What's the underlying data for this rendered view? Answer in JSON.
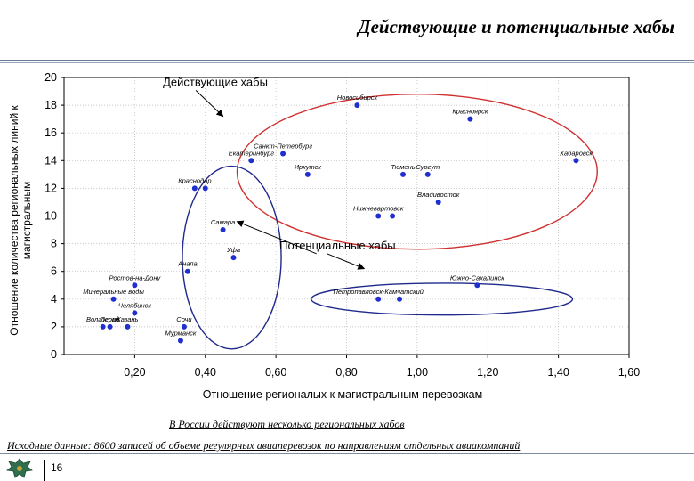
{
  "page": {
    "title": "Действующие и потенциальные хабы",
    "caption": "В России действуют несколько региональных хабов",
    "source": "Исходные данные: 8600 записей об объеме регулярных авиаперевозок по направлениям отдельных авиакомпаний",
    "page_number": "16"
  },
  "chart_data": {
    "type": "scatter",
    "xlabel": "Отношение регионалых к магистральным перевозкам",
    "ylabel": "Отношение количества региональных линий к магистральным",
    "xlim": [
      0.0,
      1.6
    ],
    "ylim": [
      0,
      20
    ],
    "x_ticks": [
      "0,20",
      "0,40",
      "0,60",
      "0,80",
      "1,00",
      "1,20",
      "1,40",
      "1,60"
    ],
    "x_tick_values": [
      0.2,
      0.4,
      0.6,
      0.8,
      1.0,
      1.2,
      1.4,
      1.6
    ],
    "y_ticks": [
      0,
      2,
      4,
      6,
      8,
      10,
      12,
      14,
      16,
      18,
      20
    ],
    "grid": true,
    "point_color": "#1f2fd0",
    "points": [
      {
        "x": 0.83,
        "y": 18.0,
        "label": "Новосибирск"
      },
      {
        "x": 1.15,
        "y": 17.0,
        "label": "Красноярск"
      },
      {
        "x": 0.62,
        "y": 14.5,
        "label": "Санкт-Петербург"
      },
      {
        "x": 0.53,
        "y": 14.0,
        "label": "Екатеринбург"
      },
      {
        "x": 1.45,
        "y": 14.0,
        "label": "Хабаровск"
      },
      {
        "x": 0.69,
        "y": 13.0,
        "label": "Иркутск"
      },
      {
        "x": 0.96,
        "y": 13.0,
        "label": "Тюмень"
      },
      {
        "x": 1.03,
        "y": 13.0,
        "label": "Сургут"
      },
      {
        "x": 0.37,
        "y": 12.0,
        "label": "Краснодар"
      },
      {
        "x": 0.4,
        "y": 12.0,
        "label": ""
      },
      {
        "x": 1.06,
        "y": 11.0,
        "label": "Владивосток"
      },
      {
        "x": 0.89,
        "y": 10.0,
        "label": "Нижневартовск"
      },
      {
        "x": 0.93,
        "y": 10.0,
        "label": ""
      },
      {
        "x": 0.45,
        "y": 9.0,
        "label": "Самара"
      },
      {
        "x": 0.48,
        "y": 7.0,
        "label": "Уфа"
      },
      {
        "x": 0.35,
        "y": 6.0,
        "label": "Анапа"
      },
      {
        "x": 0.2,
        "y": 5.0,
        "label": "Ростов-на-Дону"
      },
      {
        "x": 1.17,
        "y": 5.0,
        "label": "Южно-Сахалинск"
      },
      {
        "x": 0.14,
        "y": 4.0,
        "label": "Минеральные воды"
      },
      {
        "x": 0.89,
        "y": 4.0,
        "label": "Петропавловск-Камчатский"
      },
      {
        "x": 0.95,
        "y": 4.0,
        "label": ""
      },
      {
        "x": 0.2,
        "y": 3.0,
        "label": "Челябинск"
      },
      {
        "x": 0.11,
        "y": 2.0,
        "label": "Волгоград"
      },
      {
        "x": 0.13,
        "y": 2.0,
        "label": "Пермь"
      },
      {
        "x": 0.18,
        "y": 2.0,
        "label": "Казань"
      },
      {
        "x": 0.34,
        "y": 2.0,
        "label": "Сочи"
      },
      {
        "x": 0.33,
        "y": 1.0,
        "label": "Мурманск"
      }
    ],
    "annotations": [
      {
        "text": "Действующие хабы",
        "x": 0.28,
        "y": 19.4,
        "arrow_to": [
          0.45,
          17.2
        ]
      },
      {
        "text": "Потенциальные хабы",
        "x": 0.61,
        "y": 7.6,
        "arrow_to": [
          0.49,
          9.6
        ],
        "arrow_to2": [
          0.85,
          6.2
        ]
      }
    ],
    "ellipses": [
      {
        "name": "Действующие хабы",
        "color": "#d03030",
        "cx": 1.0,
        "cy": 13.2,
        "rx": 0.51,
        "ry": 5.6
      },
      {
        "name": "Потенциальные хабы",
        "color": "#1f2a8c",
        "cx": 0.475,
        "cy": 7.0,
        "rx": 0.14,
        "ry": 6.6
      },
      {
        "name": "Потенциальные хабы",
        "color": "#1f2a8c",
        "cx": 1.07,
        "cy": 4.0,
        "rx": 0.37,
        "ry": 1.15
      }
    ]
  }
}
